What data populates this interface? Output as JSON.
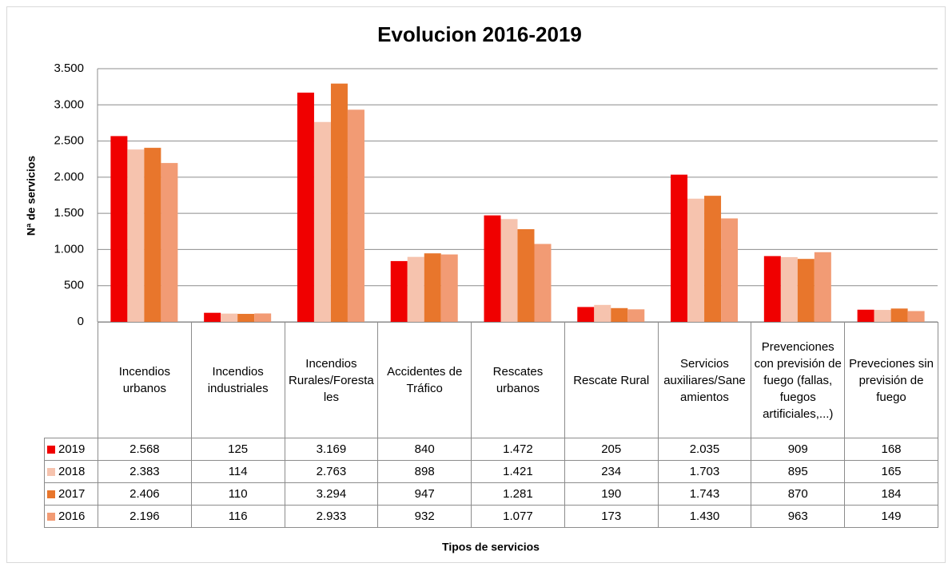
{
  "chart_data": {
    "type": "bar",
    "title": "Evolucion 2016-2019",
    "x_label": "Tipos de servicios",
    "y_label": "Nª de servicios",
    "categories": [
      "Incendios urbanos",
      "Incendios industriales",
      "Incendios Rurales/Forestales",
      "Accidentes de Tráfico",
      "Rescates urbanos",
      "Rescate Rural",
      "Servicios auxiliares/Saneamientos",
      "Prevenciones con previsión de fuego (fallas, fuegos artificiales,...)",
      "Preveciones sin previsión de fuego"
    ],
    "series": [
      {
        "name": "2019",
        "color": "#f00000",
        "values": [
          2568,
          125,
          3169,
          840,
          1472,
          205,
          2035,
          909,
          168
        ],
        "value_labels": [
          "2.568",
          "125",
          "3.169",
          "840",
          "1.472",
          "205",
          "2.035",
          "909",
          "168"
        ]
      },
      {
        "name": "2018",
        "color": "#f6c3ae",
        "values": [
          2383,
          114,
          2763,
          898,
          1421,
          234,
          1703,
          895,
          165
        ],
        "value_labels": [
          "2.383",
          "114",
          "2.763",
          "898",
          "1.421",
          "234",
          "1.703",
          "895",
          "165"
        ]
      },
      {
        "name": "2017",
        "color": "#e8762c",
        "values": [
          2406,
          110,
          3294,
          947,
          1281,
          190,
          1743,
          870,
          184
        ],
        "value_labels": [
          "2.406",
          "110",
          "3.294",
          "947",
          "1.281",
          "190",
          "1.743",
          "870",
          "184"
        ]
      },
      {
        "name": "2016",
        "color": "#f29b74",
        "values": [
          2196,
          116,
          2933,
          932,
          1077,
          173,
          1430,
          963,
          149
        ],
        "value_labels": [
          "2.196",
          "116",
          "2.933",
          "932",
          "1.077",
          "173",
          "1.430",
          "963",
          "149"
        ]
      }
    ],
    "ylim": [
      0,
      3500
    ],
    "yticks": [
      0,
      500,
      {
        "value": 1000,
        "label": "1.000"
      },
      {
        "value": 1500,
        "label": "1.500"
      },
      {
        "value": 2000,
        "label": "2.000"
      },
      {
        "value": 2500,
        "label": "2.500"
      },
      {
        "value": 3000,
        "label": "3.000"
      },
      {
        "value": 3500,
        "label": "3.500"
      }
    ],
    "grid": true
  }
}
